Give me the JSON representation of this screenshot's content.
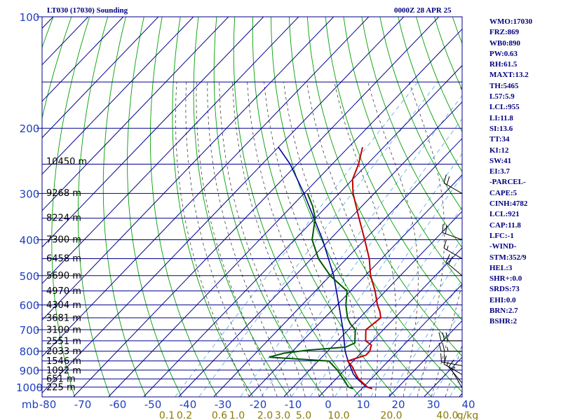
{
  "header": {
    "station_title": "LT030 (17030) Sounding",
    "valid_time": "0000Z 28 APR 25"
  },
  "indices": [
    "WMO:17030",
    "FRZ:869",
    "WB0:890",
    "PW:0.63",
    "RH:61.5",
    "MAXT:13.2",
    "TH:5465",
    "L57:5.9",
    "LCL:955",
    "LI:11.8",
    "SI:13.6",
    "TT:34",
    "KI:12",
    "SW:41",
    "EI:3.7",
    "-PARCEL-",
    "CAPE:5",
    "CINH:4782",
    "LCL:921",
    "CAP:11.8",
    "LFC:-1",
    "-WIND-",
    "STM:352/9",
    "HEL:3",
    "SHR+:0.0",
    "SRDS:73",
    "EHI:0.0",
    "BRN:2.7",
    "BSHR:2"
  ],
  "colors": {
    "grid": "#00008b",
    "dry_adiabat": "#00a000",
    "moist_adiabat": "#404040",
    "mixing_ratio": "#4fa4e8",
    "temperature": "#c00000",
    "dewpoint": "#005a00",
    "parcel": "#0000a0",
    "axis_label": "#2040c0",
    "mixing_label": "#8a7a00",
    "height_label": "#000000",
    "wind": "#000000"
  },
  "chart_data": {
    "type": "skew-t",
    "pressure_unit_label": "mb",
    "pressure_ticks": [
      100,
      200,
      300,
      400,
      500,
      600,
      700,
      800,
      900,
      1000
    ],
    "pressure_gridlines": [
      150,
      250,
      350,
      450,
      550,
      650,
      750,
      850,
      950
    ],
    "temperature_ticks": [
      -80,
      -70,
      -60,
      -50,
      -40,
      -30,
      -20,
      -10,
      0,
      10,
      20,
      30,
      40
    ],
    "temperature_tick_labels": [
      "-80",
      "-70",
      "-60",
      "-50",
      "-40",
      "-30",
      "-20",
      "-10",
      "0",
      "10",
      "20",
      "30",
      "40"
    ],
    "mixing_ratio_unit": "g/kg",
    "mixing_ratio_labels": [
      {
        "label": "0.1",
        "temp": -46
      },
      {
        "label": "0.2",
        "temp": -41
      },
      {
        "label": "0.6",
        "temp": -31
      },
      {
        "label": "1.0",
        "temp": -26
      },
      {
        "label": "2.0",
        "temp": -18
      },
      {
        "label": "3.0",
        "temp": -13
      },
      {
        "label": "5.0",
        "temp": -7
      },
      {
        "label": "10.0",
        "temp": 3
      },
      {
        "label": "20.0",
        "temp": 18
      },
      {
        "label": "40.0",
        "temp": 34
      }
    ],
    "height_labels": [
      {
        "p": 245,
        "text": "10450 m"
      },
      {
        "p": 298,
        "text": "9268 m"
      },
      {
        "p": 348,
        "text": "8224 m"
      },
      {
        "p": 398,
        "text": "7300 m"
      },
      {
        "p": 448,
        "text": "6458 m"
      },
      {
        "p": 498,
        "text": "5690 m"
      },
      {
        "p": 548,
        "text": "4970 m"
      },
      {
        "p": 598,
        "text": "4304 m"
      },
      {
        "p": 648,
        "text": "3681 m"
      },
      {
        "p": 698,
        "text": "3100 m"
      },
      {
        "p": 748,
        "text": "2551 m"
      },
      {
        "p": 798,
        "text": "2033 m"
      },
      {
        "p": 848,
        "text": "1546 m"
      },
      {
        "p": 898,
        "text": "1092 m"
      },
      {
        "p": 948,
        "text": "651 m"
      },
      {
        "p": 998,
        "text": "225 m"
      }
    ],
    "temperature_profile": [
      {
        "p": 1010,
        "t": 13.0
      },
      {
        "p": 1000,
        "t": 11.2
      },
      {
        "p": 950,
        "t": 6.4
      },
      {
        "p": 925,
        "t": 4.5
      },
      {
        "p": 880,
        "t": 1.2
      },
      {
        "p": 850,
        "t": -1.6
      },
      {
        "p": 820,
        "t": 2.0
      },
      {
        "p": 800,
        "t": 2.0
      },
      {
        "p": 770,
        "t": 0.8
      },
      {
        "p": 750,
        "t": -2.0
      },
      {
        "p": 700,
        "t": -5.0
      },
      {
        "p": 675,
        "t": -4.5
      },
      {
        "p": 650,
        "t": -4.0
      },
      {
        "p": 625,
        "t": -6.0
      },
      {
        "p": 600,
        "t": -8.5
      },
      {
        "p": 550,
        "t": -13.0
      },
      {
        "p": 500,
        "t": -18.5
      },
      {
        "p": 450,
        "t": -23.5
      },
      {
        "p": 400,
        "t": -30.0
      },
      {
        "p": 350,
        "t": -37.5
      },
      {
        "p": 300,
        "t": -46.0
      },
      {
        "p": 275,
        "t": -50.0
      },
      {
        "p": 250,
        "t": -52.5
      },
      {
        "p": 225,
        "t": -56.0
      }
    ],
    "dewpoint_profile": [
      {
        "p": 1010,
        "t": 7.5
      },
      {
        "p": 1000,
        "t": 5.8
      },
      {
        "p": 950,
        "t": 2.0
      },
      {
        "p": 900,
        "t": -2.0
      },
      {
        "p": 850,
        "t": -7.0
      },
      {
        "p": 830,
        "t": -25.0
      },
      {
        "p": 810,
        "t": -22.0
      },
      {
        "p": 795,
        "t": -16.0
      },
      {
        "p": 780,
        "t": -6.0
      },
      {
        "p": 760,
        "t": -4.5
      },
      {
        "p": 700,
        "t": -8.0
      },
      {
        "p": 675,
        "t": -11.0
      },
      {
        "p": 650,
        "t": -13.5
      },
      {
        "p": 600,
        "t": -17.5
      },
      {
        "p": 550,
        "t": -21.0
      },
      {
        "p": 500,
        "t": -30.0
      },
      {
        "p": 450,
        "t": -38.0
      },
      {
        "p": 400,
        "t": -45.0
      },
      {
        "p": 350,
        "t": -50.0
      },
      {
        "p": 325,
        "t": -54.0
      },
      {
        "p": 300,
        "t": -59.0
      }
    ],
    "parcel_profile": [
      {
        "p": 1010,
        "t": 13.0
      },
      {
        "p": 1000,
        "t": 11.0
      },
      {
        "p": 950,
        "t": 6.0
      },
      {
        "p": 921,
        "t": 3.5
      },
      {
        "p": 850,
        "t": -1.5
      },
      {
        "p": 800,
        "t": -5.0
      },
      {
        "p": 700,
        "t": -11.5
      },
      {
        "p": 600,
        "t": -19.5
      },
      {
        "p": 500,
        "t": -29.0
      },
      {
        "p": 400,
        "t": -42.0
      },
      {
        "p": 300,
        "t": -60.0
      },
      {
        "p": 250,
        "t": -72.0
      },
      {
        "p": 225,
        "t": -80.0
      }
    ],
    "wind_barbs": [
      {
        "p": 1005,
        "dir": 330,
        "speed": 5
      },
      {
        "p": 975,
        "dir": 320,
        "speed": 10
      },
      {
        "p": 925,
        "dir": 300,
        "speed": 15
      },
      {
        "p": 875,
        "dir": 280,
        "speed": 20
      },
      {
        "p": 800,
        "dir": 270,
        "speed": 25
      },
      {
        "p": 750,
        "dir": 270,
        "speed": 30
      },
      {
        "p": 500,
        "dir": 310,
        "speed": 20
      },
      {
        "p": 450,
        "dir": 300,
        "speed": 15
      },
      {
        "p": 400,
        "dir": 290,
        "speed": 20
      },
      {
        "p": 300,
        "dir": 300,
        "speed": 20
      }
    ]
  }
}
